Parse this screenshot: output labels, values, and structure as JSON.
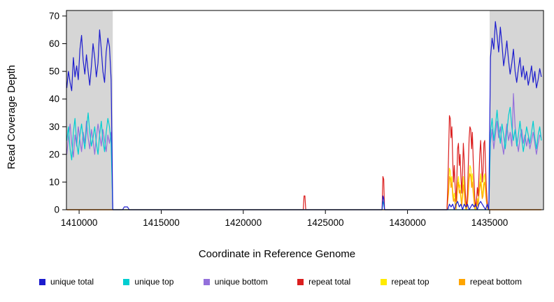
{
  "figure": {
    "background": "#FFFFFF"
  },
  "chart_data": {
    "type": "line",
    "title": "",
    "xlabel": "Coordinate in Reference Genome",
    "ylabel": "Read Coverage Depth",
    "xlim": [
      1409230,
      1438280
    ],
    "ylim": [
      0,
      72
    ],
    "x_ticks": [
      1410000,
      1415000,
      1420000,
      1425000,
      1430000,
      1435000
    ],
    "x_tick_labels": [
      "1410000",
      "1415000",
      "1420000",
      "1425000",
      "1430000",
      "1435000"
    ],
    "y_ticks": [
      0,
      10,
      20,
      30,
      40,
      50,
      60,
      70
    ],
    "y_tick_labels": [
      "0",
      "10",
      "20",
      "30",
      "40",
      "50",
      "60",
      "70"
    ],
    "grid": false,
    "legend_position": "bottom",
    "axis_color": "#000000",
    "shaded_regions": [
      {
        "x_start": 1409230,
        "x_end": 1412050,
        "color": "#D6D6D6"
      },
      {
        "x_start": 1435000,
        "x_end": 1438280,
        "color": "#D6D6D6"
      }
    ],
    "draw_order": [
      4,
      5,
      3,
      2,
      1,
      0
    ],
    "series": [
      {
        "name": "unique total",
        "color": "#1C1CCE",
        "segments": [
          {
            "x_start": 1409250,
            "x_step": 100,
            "y": [
              44,
              50,
              46,
              43,
              55,
              48,
              52,
              47,
              58,
              63,
              54,
              49,
              56,
              50,
              45,
              52,
              60,
              55,
              48,
              53,
              65,
              58,
              50,
              46,
              57,
              62,
              59,
              47
            ]
          },
          {
            "x_start": 1412050,
            "x_step": 100,
            "y": [
              0,
              0
            ]
          },
          {
            "x_start": 1412650,
            "x_step": 100,
            "y": [
              0,
              1,
              1,
              1,
              0
            ]
          },
          {
            "x_start": 1428450,
            "x_step": 50,
            "y": [
              0,
              5,
              4,
              0
            ]
          },
          {
            "x_start": 1432450,
            "x_step": 100,
            "y": [
              0,
              2,
              1,
              2,
              0,
              2,
              3,
              1,
              2,
              0,
              2,
              1,
              2,
              0,
              1,
              2,
              1,
              2,
              0,
              2,
              3,
              2,
              1,
              0,
              2,
              0
            ]
          },
          {
            "x_start": 1435050,
            "x_step": 100,
            "y": [
              55,
              62,
              58,
              68,
              63,
              57,
              66,
              60,
              52,
              56,
              61,
              54,
              49,
              53,
              58,
              50,
              46,
              51,
              55,
              48,
              52,
              47,
              50,
              45,
              48,
              52,
              46,
              50,
              44,
              47,
              51,
              48
            ]
          }
        ]
      },
      {
        "name": "unique top",
        "color": "#00CED1",
        "segments": [
          {
            "x_start": 1409250,
            "x_step": 100,
            "y": [
              25,
              30,
              22,
              18,
              28,
              33,
              24,
              20,
              27,
              31,
              26,
              22,
              29,
              35,
              28,
              23,
              26,
              30,
              24,
              20,
              27,
              32,
              25,
              21,
              28,
              33,
              30,
              24
            ]
          },
          {
            "x_start": 1412050,
            "x_step": 100,
            "y": [
              0,
              0
            ]
          },
          {
            "x_start": 1428450,
            "x_step": 50,
            "y": [
              0,
              3,
              2,
              0
            ]
          },
          {
            "x_start": 1434950,
            "x_step": 100,
            "y": [
              0
            ]
          },
          {
            "x_start": 1435050,
            "x_step": 100,
            "y": [
              28,
              33,
              25,
              30,
              36,
              29,
              24,
              31,
              27,
              22,
              28,
              34,
              37,
              30,
              25,
              29,
              23,
              27,
              32,
              26,
              21,
              25,
              30,
              27,
              24,
              28,
              32,
              26,
              22,
              27,
              30,
              25
            ]
          }
        ]
      },
      {
        "name": "unique bottom",
        "color": "#9370DB",
        "segments": [
          {
            "x_start": 1409250,
            "x_step": 100,
            "y": [
              20,
              26,
              31,
              24,
              19,
              27,
              23,
              30,
              25,
              21,
              28,
              24,
              32,
              26,
              22,
              29,
              25,
              20,
              26,
              31,
              27,
              23,
              29,
              25,
              21,
              27,
              24,
              28
            ]
          },
          {
            "x_start": 1412050,
            "x_step": 100,
            "y": [
              0,
              0
            ]
          },
          {
            "x_start": 1434950,
            "x_step": 100,
            "y": [
              0
            ]
          },
          {
            "x_start": 1435050,
            "x_step": 100,
            "y": [
              24,
              29,
              22,
              27,
              32,
              26,
              30,
              24,
              20,
              26,
              31,
              25,
              28,
              23,
              42,
              30,
              25,
              21,
              26,
              29,
              24,
              27,
              23,
              26,
              22,
              25,
              28,
              24,
              20,
              24,
              27,
              26
            ]
          }
        ]
      },
      {
        "name": "repeat total",
        "color": "#DB1E1E",
        "segments": [
          {
            "x_start": 1409250,
            "x_step": 100,
            "y": [
              0
            ]
          },
          {
            "x_start": 1423650,
            "x_step": 50,
            "y": [
              0,
              5,
              5,
              0
            ]
          },
          {
            "x_start": 1428450,
            "x_step": 50,
            "y": [
              0,
              12,
              11,
              0
            ]
          },
          {
            "x_start": 1432400,
            "x_step": 50,
            "y": [
              0,
              8,
              20,
              34,
              33,
              26,
              30,
              18,
              10,
              16,
              8,
              3,
              10,
              22,
              24,
              16,
              20,
              12,
              6,
              14,
              24,
              18,
              8,
              3,
              1,
              6,
              16,
              26,
              30,
              29,
              22,
              28,
              18,
              10,
              4,
              1,
              3,
              8,
              5,
              12,
              20,
              25,
              18,
              10,
              14,
              24,
              25,
              16,
              8,
              3,
              1,
              0
            ]
          },
          {
            "x_start": 1438150,
            "x_step": 100,
            "y": [
              0
            ]
          }
        ]
      },
      {
        "name": "repeat top",
        "color": "#FFEB00",
        "segments": [
          {
            "x_start": 1409250,
            "x_step": 100,
            "y": [
              0
            ]
          },
          {
            "x_start": 1432400,
            "x_step": 50,
            "y": [
              0,
              4,
              8,
              15,
              14,
              10,
              12,
              7,
              4,
              6,
              3,
              1,
              4,
              10,
              12,
              8,
              9,
              5,
              2,
              7,
              12,
              8,
              3,
              1,
              0,
              3,
              8,
              13,
              16,
              15,
              10,
              13,
              8,
              4,
              1,
              0,
              1,
              4,
              2,
              6,
              10,
              13,
              9,
              5,
              7,
              12,
              13,
              8,
              4,
              1,
              0,
              0
            ]
          },
          {
            "x_start": 1438150,
            "x_step": 100,
            "y": [
              0
            ]
          }
        ]
      },
      {
        "name": "repeat bottom",
        "color": "#FFA500",
        "segments": [
          {
            "x_start": 1409250,
            "x_step": 100,
            "y": [
              0
            ]
          },
          {
            "x_start": 1432400,
            "x_step": 50,
            "y": [
              0,
              3,
              6,
              12,
              11,
              8,
              10,
              5,
              3,
              4,
              2,
              0,
              3,
              8,
              10,
              6,
              7,
              4,
              1,
              5,
              9,
              6,
              2,
              0,
              0,
              2,
              6,
              11,
              13,
              12,
              8,
              10,
              6,
              3,
              0,
              0,
              0,
              3,
              1,
              5,
              8,
              10,
              7,
              4,
              5,
              9,
              10,
              6,
              3,
              1,
              0,
              0
            ]
          },
          {
            "x_start": 1438150,
            "x_step": 100,
            "y": [
              0
            ]
          }
        ]
      }
    ]
  }
}
